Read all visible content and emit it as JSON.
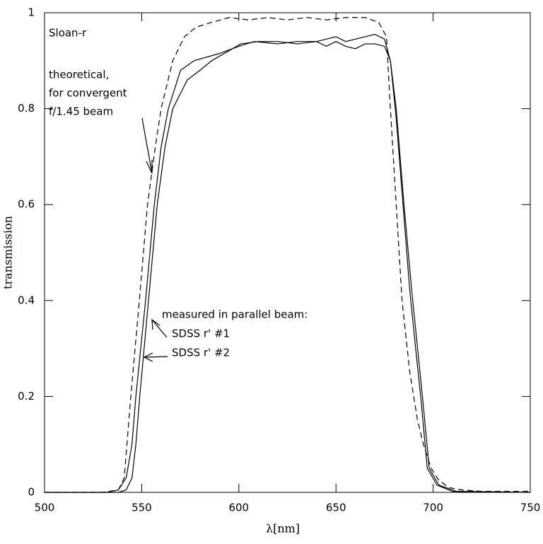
{
  "chart_data": {
    "type": "line",
    "xlabel": "λ[nm]",
    "ylabel": "transmission",
    "xlim": [
      500,
      750
    ],
    "ylim": [
      0,
      1
    ],
    "xticks": [
      500,
      550,
      600,
      650,
      700,
      750
    ],
    "yticks": [
      0,
      0.2,
      0.4,
      0.6,
      0.8,
      1
    ],
    "annotations": [
      "Sloan-r",
      "theoretical,",
      "for convergent",
      "f/1.45 beam",
      "measured in parallel beam:",
      "SDSS r' #1",
      "SDSS r' #2"
    ],
    "series": [
      {
        "color": "#000000",
        "dashed": true,
        "x": [
          500,
          530,
          538,
          541,
          544.4,
          548.8,
          553,
          555,
          557,
          560,
          566,
          572,
          578,
          586,
          595,
          605,
          615,
          625,
          635,
          645,
          655,
          665,
          672,
          676,
          678,
          681,
          684,
          688,
          692,
          695,
          699,
          703,
          708,
          715,
          725,
          750
        ],
        "values": [
          0,
          0,
          0.005,
          0.03,
          0.2,
          0.4,
          0.6,
          0.66,
          0.72,
          0.8,
          0.9,
          0.95,
          0.97,
          0.98,
          0.99,
          0.985,
          0.99,
          0.985,
          0.99,
          0.985,
          0.99,
          0.99,
          0.98,
          0.95,
          0.8,
          0.6,
          0.4,
          0.25,
          0.15,
          0.1,
          0.05,
          0.025,
          0.01,
          0.005,
          0.002,
          0.002
        ]
      },
      {
        "color": "#000000",
        "dashed": false,
        "x": [
          500,
          532,
          538,
          542,
          545,
          547,
          552,
          556.5,
          560,
          563.7,
          570,
          577,
          590,
          600,
          608,
          620,
          630,
          640,
          645,
          650,
          655,
          660,
          665,
          670,
          675,
          678,
          681,
          684.5,
          688,
          691,
          693.6,
          697,
          702,
          710,
          750
        ],
        "values": [
          0,
          0,
          0.005,
          0.03,
          0.1,
          0.2,
          0.4,
          0.6,
          0.72,
          0.8,
          0.88,
          0.9,
          0.915,
          0.93,
          0.94,
          0.935,
          0.94,
          0.94,
          0.945,
          0.95,
          0.94,
          0.945,
          0.95,
          0.955,
          0.945,
          0.9,
          0.78,
          0.6,
          0.42,
          0.3,
          0.2,
          0.05,
          0.015,
          0.002,
          0
        ]
      },
      {
        "color": "#000000",
        "dashed": false,
        "x": [
          500,
          538,
          542,
          545,
          547,
          549,
          553.5,
          558,
          562,
          566,
          573.5,
          580,
          586,
          601,
          610,
          620,
          630,
          640,
          645,
          650,
          655,
          660,
          665,
          670,
          675,
          678,
          681,
          685,
          689,
          692,
          694.5,
          698,
          703,
          712,
          750
        ],
        "values": [
          0,
          0,
          0.005,
          0.03,
          0.1,
          0.2,
          0.4,
          0.6,
          0.72,
          0.8,
          0.86,
          0.88,
          0.9,
          0.935,
          0.94,
          0.94,
          0.935,
          0.94,
          0.93,
          0.94,
          0.93,
          0.925,
          0.935,
          0.935,
          0.93,
          0.9,
          0.8,
          0.6,
          0.42,
          0.3,
          0.2,
          0.05,
          0.015,
          0.002,
          0
        ]
      }
    ]
  }
}
